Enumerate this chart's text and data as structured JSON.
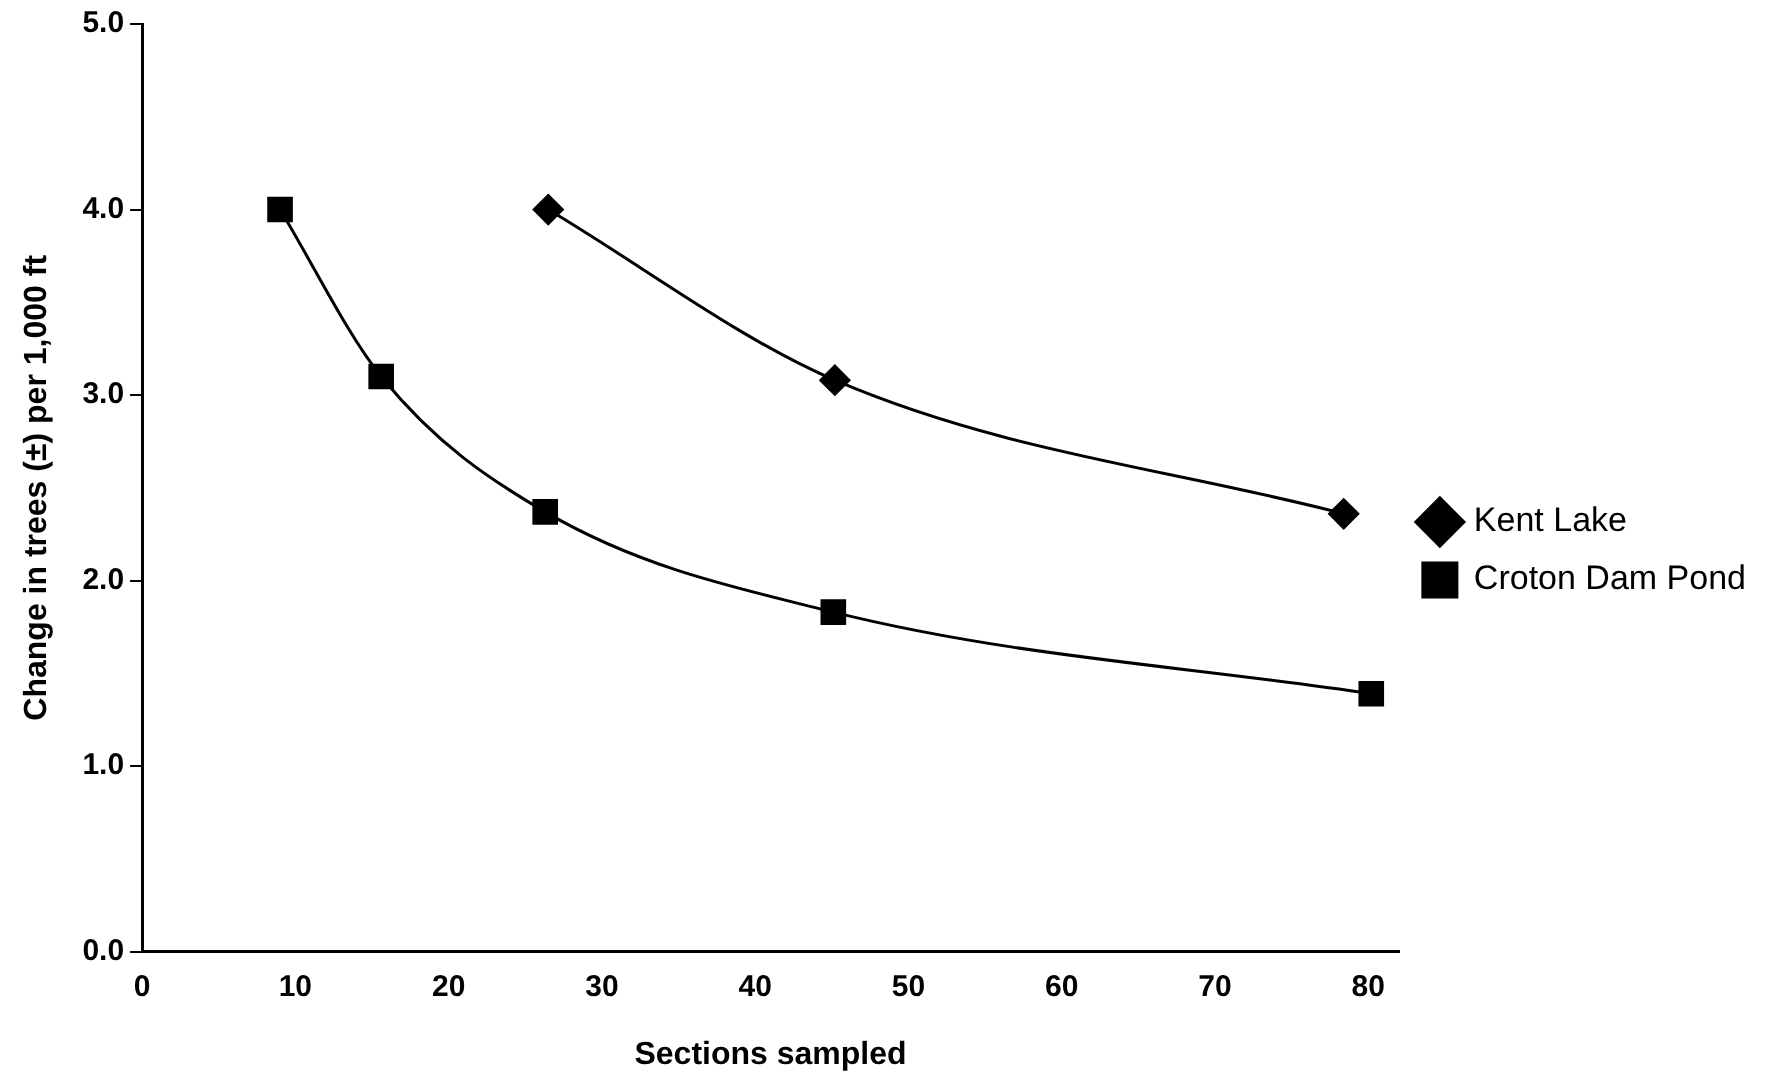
{
  "chart_data": {
    "type": "line",
    "xlabel": "Sections sampled",
    "ylabel": "Change in trees (±) per 1,000 ft",
    "xlim": [
      0,
      82
    ],
    "xticks": [
      0,
      10,
      20,
      30,
      40,
      50,
      60,
      70,
      80
    ],
    "ylim": [
      0,
      5
    ],
    "yticks": [
      {
        "value": 0,
        "label": "0.0"
      },
      {
        "value": 1,
        "label": "1.0"
      },
      {
        "value": 2,
        "label": "2.0"
      },
      {
        "value": 3,
        "label": "3.0"
      },
      {
        "value": 4,
        "label": "4.0"
      },
      {
        "value": 5,
        "label": "5.0"
      }
    ],
    "grid": false,
    "legend": "right",
    "series": [
      {
        "name": "Kent Lake",
        "color": "#000000",
        "marker": "diamond",
        "x": [
          26.5,
          45.2,
          78.4
        ],
        "values": [
          4.0,
          3.08,
          2.36
        ]
      },
      {
        "name": "Croton Dam Pond",
        "color": "#000000",
        "marker": "square",
        "x": [
          9,
          15.6,
          26.3,
          45.1,
          80.2
        ],
        "values": [
          4.0,
          3.1,
          2.37,
          1.83,
          1.39
        ]
      }
    ]
  }
}
